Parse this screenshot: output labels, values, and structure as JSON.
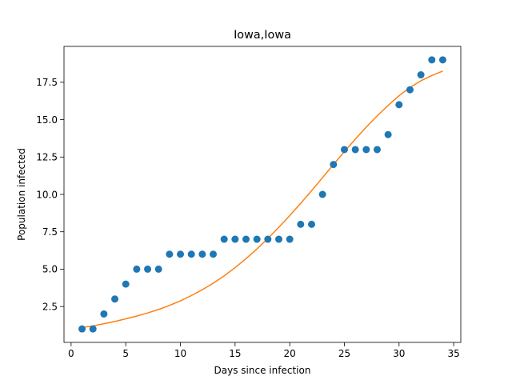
{
  "chart_data": {
    "type": "scatter",
    "title": "Iowa,Iowa",
    "xlabel": "Days since infection",
    "ylabel": "Population infected",
    "xlim": [
      -0.65,
      35.65
    ],
    "ylim": [
      0.1,
      19.9
    ],
    "xticks": [
      0,
      5,
      10,
      15,
      20,
      25,
      30,
      35
    ],
    "xtick_labels": [
      "0",
      "5",
      "10",
      "15",
      "20",
      "25",
      "30",
      "35"
    ],
    "yticks": [
      2.5,
      5.0,
      7.5,
      10.0,
      12.5,
      15.0,
      17.5
    ],
    "ytick_labels": [
      "2.5",
      "5.0",
      "7.5",
      "10.0",
      "12.5",
      "15.0",
      "17.5"
    ],
    "grid": false,
    "series": [
      {
        "kind": "scatter",
        "color": "#1f77b4",
        "x": [
          1,
          2,
          3,
          4,
          5,
          6,
          7,
          8,
          9,
          10,
          11,
          12,
          13,
          14,
          15,
          16,
          17,
          18,
          19,
          20,
          21,
          22,
          23,
          24,
          25,
          26,
          27,
          28,
          29,
          30,
          31,
          32,
          33,
          34
        ],
        "y": [
          1,
          1,
          2,
          3,
          4,
          5,
          5,
          5,
          6,
          6,
          6,
          6,
          6,
          7,
          7,
          7,
          7,
          7,
          7,
          7,
          8,
          8,
          10,
          12,
          13,
          13,
          13,
          13,
          14,
          16,
          17,
          18,
          19,
          19
        ]
      },
      {
        "kind": "line",
        "color": "#ff7f0e",
        "x": [
          1,
          2,
          3,
          4,
          5,
          6,
          7,
          8,
          9,
          10,
          11,
          12,
          13,
          14,
          15,
          16,
          17,
          18,
          19,
          20,
          21,
          22,
          23,
          24,
          25,
          26,
          27,
          28,
          29,
          30,
          31,
          32,
          33,
          34
        ],
        "y": [
          1.1,
          1.2,
          1.35,
          1.5,
          1.68,
          1.86,
          2.07,
          2.3,
          2.57,
          2.88,
          3.23,
          3.62,
          4.06,
          4.55,
          5.1,
          5.7,
          6.35,
          7.05,
          7.8,
          8.58,
          9.4,
          10.25,
          11.12,
          12.0,
          12.86,
          13.7,
          14.5,
          15.25,
          15.95,
          16.6,
          17.15,
          17.6,
          17.95,
          18.25
        ]
      }
    ]
  }
}
